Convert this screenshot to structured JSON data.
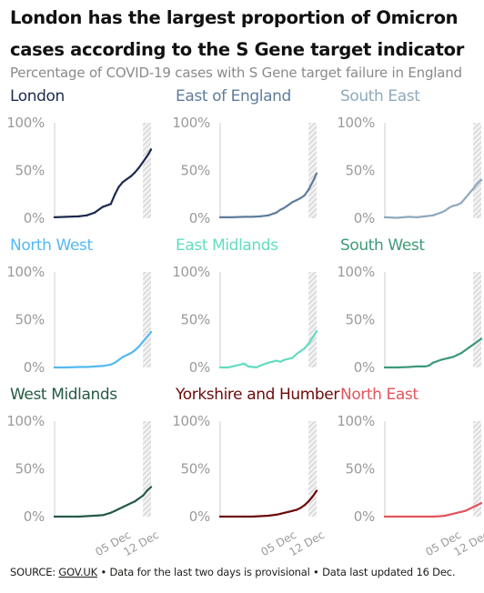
{
  "title": "London has the largest proportion of Omicron cases according to the S Gene target indicator",
  "subtitle": "Percentage of COVID-19 cases with S Gene target failure in England",
  "source": {
    "prefix": "SOURCE: ",
    "link": "GOV.UK",
    "suffix": " • Data for the last two days is provisional • Data last updated 16 Dec."
  },
  "chart_data": {
    "type": "line",
    "subtitle": "Percentage of COVID-19 cases with S Gene target failure in England",
    "y_ticks": [
      "100%",
      "50%",
      "0%"
    ],
    "ylim": [
      0,
      100
    ],
    "x_ticks": [
      "05 Dec",
      "12 Dec"
    ],
    "xlim": [
      "2021-11-20",
      "2021-12-14"
    ],
    "provisional_period": [
      "2021-12-12",
      "2021-12-14"
    ],
    "grid": false,
    "colors": {
      "provisional_hatch": "#bdbdbd",
      "axis_text": "#9a9a9a"
    },
    "panels": [
      {
        "name": "London",
        "color": "#1c2b4e",
        "x": [
          "2021-11-20",
          "2021-11-23",
          "2021-11-26",
          "2021-11-28",
          "2021-11-30",
          "2021-12-02",
          "2021-12-04",
          "2021-12-05",
          "2021-12-06",
          "2021-12-07",
          "2021-12-08",
          "2021-12-09",
          "2021-12-10",
          "2021-12-11",
          "2021-12-12",
          "2021-12-13",
          "2021-12-14"
        ],
        "values": [
          1,
          1.5,
          2,
          3,
          6,
          12,
          15,
          25,
          33,
          38,
          41,
          44,
          48,
          53,
          59,
          65,
          72
        ]
      },
      {
        "name": "East of England",
        "color": "#5f7d9c",
        "x": [
          "2021-11-20",
          "2021-11-23",
          "2021-11-26",
          "2021-11-28",
          "2021-11-30",
          "2021-12-02",
          "2021-12-04",
          "2021-12-05",
          "2021-12-06",
          "2021-12-07",
          "2021-12-08",
          "2021-12-09",
          "2021-12-10",
          "2021-12-11",
          "2021-12-12",
          "2021-12-13",
          "2021-12-14"
        ],
        "values": [
          1,
          1,
          1.5,
          1.5,
          2,
          3,
          6,
          9,
          11,
          14,
          17,
          19,
          21,
          24,
          30,
          38,
          47
        ]
      },
      {
        "name": "South East",
        "color": "#8fa9be",
        "x": [
          "2021-11-20",
          "2021-11-23",
          "2021-11-26",
          "2021-11-28",
          "2021-11-30",
          "2021-12-02",
          "2021-12-04",
          "2021-12-05",
          "2021-12-06",
          "2021-12-07",
          "2021-12-08",
          "2021-12-09",
          "2021-12-10",
          "2021-12-11",
          "2021-12-12",
          "2021-12-13",
          "2021-12-14"
        ],
        "values": [
          1,
          0.5,
          1.5,
          1,
          2,
          3,
          6,
          8,
          11,
          13,
          14,
          16,
          21,
          26,
          31,
          36,
          40
        ]
      },
      {
        "name": "North West",
        "color": "#54b9f2",
        "x": [
          "2021-11-20",
          "2021-11-23",
          "2021-11-26",
          "2021-11-28",
          "2021-11-30",
          "2021-12-02",
          "2021-12-04",
          "2021-12-05",
          "2021-12-06",
          "2021-12-07",
          "2021-12-08",
          "2021-12-09",
          "2021-12-10",
          "2021-12-11",
          "2021-12-12",
          "2021-12-13",
          "2021-12-14"
        ],
        "values": [
          0,
          0,
          0.5,
          0.5,
          1,
          1.5,
          3,
          5,
          8,
          11,
          13,
          15,
          18,
          22,
          27,
          32,
          37
        ]
      },
      {
        "name": "East Midlands",
        "color": "#63dcc1",
        "x": [
          "2021-11-20",
          "2021-11-22",
          "2021-11-24",
          "2021-11-26",
          "2021-11-27",
          "2021-11-29",
          "2021-11-30",
          "2021-12-02",
          "2021-12-04",
          "2021-12-05",
          "2021-12-06",
          "2021-12-08",
          "2021-12-09",
          "2021-12-10",
          "2021-12-11",
          "2021-12-12",
          "2021-12-13",
          "2021-12-14"
        ],
        "values": [
          0,
          0,
          2,
          4,
          1,
          0,
          2,
          5,
          7,
          6,
          8,
          10,
          14,
          17,
          20,
          25,
          31,
          38
        ]
      },
      {
        "name": "South West",
        "color": "#3d9a77",
        "x": [
          "2021-11-20",
          "2021-11-23",
          "2021-11-26",
          "2021-11-28",
          "2021-11-30",
          "2021-12-01",
          "2021-12-02",
          "2021-12-04",
          "2021-12-05",
          "2021-12-06",
          "2021-12-07",
          "2021-12-08",
          "2021-12-09",
          "2021-12-10",
          "2021-12-11",
          "2021-12-12",
          "2021-12-13",
          "2021-12-14"
        ],
        "values": [
          0,
          0,
          0.5,
          1,
          1,
          2,
          5,
          8,
          9,
          10,
          11,
          13,
          15,
          18,
          21,
          24,
          27,
          30
        ]
      },
      {
        "name": "West Midlands",
        "color": "#265a45",
        "x": [
          "2021-11-20",
          "2021-11-23",
          "2021-11-26",
          "2021-11-28",
          "2021-11-30",
          "2021-12-02",
          "2021-12-04",
          "2021-12-05",
          "2021-12-06",
          "2021-12-07",
          "2021-12-08",
          "2021-12-09",
          "2021-12-10",
          "2021-12-11",
          "2021-12-12",
          "2021-12-13",
          "2021-12-14"
        ],
        "values": [
          0,
          0,
          0,
          0.5,
          1,
          1.5,
          4,
          6,
          8,
          10,
          12,
          14,
          16,
          19,
          22,
          27,
          31
        ]
      },
      {
        "name": "Yorkshire and Humber",
        "color": "#6b0b0b",
        "x": [
          "2021-11-20",
          "2021-11-23",
          "2021-11-26",
          "2021-11-28",
          "2021-11-30",
          "2021-12-02",
          "2021-12-04",
          "2021-12-05",
          "2021-12-06",
          "2021-12-07",
          "2021-12-08",
          "2021-12-09",
          "2021-12-10",
          "2021-12-11",
          "2021-12-12",
          "2021-12-13",
          "2021-12-14"
        ],
        "values": [
          0,
          0,
          0,
          0,
          0.5,
          1,
          2,
          3,
          4,
          5,
          6,
          7,
          9,
          12,
          16,
          21,
          27
        ]
      },
      {
        "name": "North East",
        "color": "#e2555d",
        "x": [
          "2021-11-20",
          "2021-11-23",
          "2021-11-26",
          "2021-11-28",
          "2021-11-30",
          "2021-12-02",
          "2021-12-04",
          "2021-12-05",
          "2021-12-06",
          "2021-12-07",
          "2021-12-08",
          "2021-12-09",
          "2021-12-10",
          "2021-12-11",
          "2021-12-12",
          "2021-12-13",
          "2021-12-14"
        ],
        "values": [
          0,
          0,
          0,
          0,
          0,
          0,
          0.5,
          1,
          2,
          3,
          4,
          5,
          6,
          8,
          10,
          12,
          14
        ]
      }
    ]
  }
}
